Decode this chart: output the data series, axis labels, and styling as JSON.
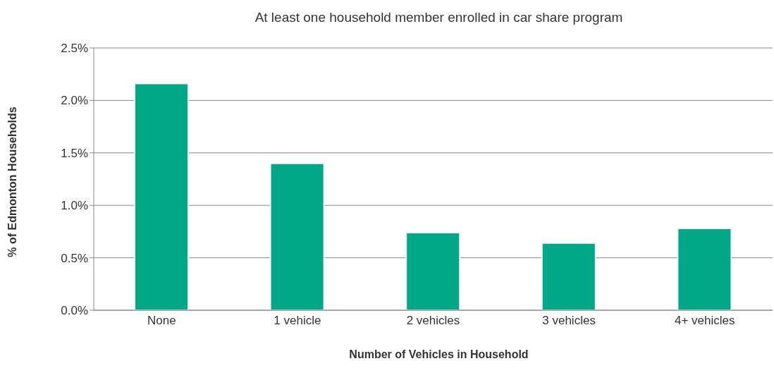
{
  "chart_data": {
    "type": "bar",
    "title": "At least one household member enrolled in car share program",
    "xlabel": "Number of Vehicles in Household",
    "ylabel": "% of Edmonton Households",
    "categories": [
      "None",
      "1 vehicle",
      "2 vehicles",
      "3 vehicles",
      "4+ vehicles"
    ],
    "values": [
      2.16,
      1.4,
      0.74,
      0.64,
      0.78
    ],
    "color": "#00a887",
    "ylim": [
      0,
      2.5
    ],
    "yticks": [
      {
        "value": 0,
        "label": "0.0%"
      },
      {
        "value": 0.5,
        "label": "0.5%"
      },
      {
        "value": 1,
        "label": "1.0%"
      },
      {
        "value": 1.5,
        "label": "1.5%"
      },
      {
        "value": 2,
        "label": "2.0%"
      },
      {
        "value": 2.5,
        "label": "2.5%"
      }
    ],
    "grid": "y",
    "legend": false
  }
}
